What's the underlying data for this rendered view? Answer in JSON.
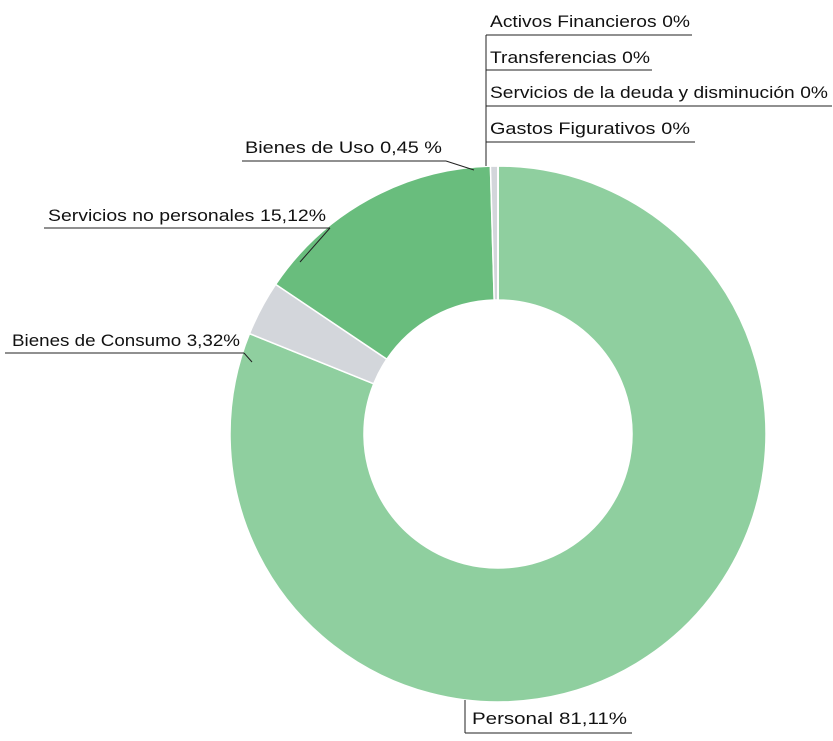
{
  "chart_data": {
    "type": "donut",
    "categories": [
      "Personal",
      "Bienes de Consumo",
      "Servicios no personales",
      "Bienes de Uso",
      "Gastos Figurativos",
      "Servicios de la deuda y disminución",
      "Transferencias",
      "Activos Financieros"
    ],
    "values": [
      81.11,
      3.32,
      15.12,
      0.45,
      0,
      0,
      0,
      0
    ],
    "value_labels": [
      "81,11%",
      "3,32%",
      "15,12%",
      "0,45 %",
      "0%",
      "0%",
      "0%",
      "0%"
    ],
    "colors": [
      "#8fcf9f",
      "#d3d6db",
      "#69bd7d",
      "#d3d6db",
      "#ffffff",
      "#ffffff",
      "#ffffff",
      "#ffffff"
    ]
  }
}
